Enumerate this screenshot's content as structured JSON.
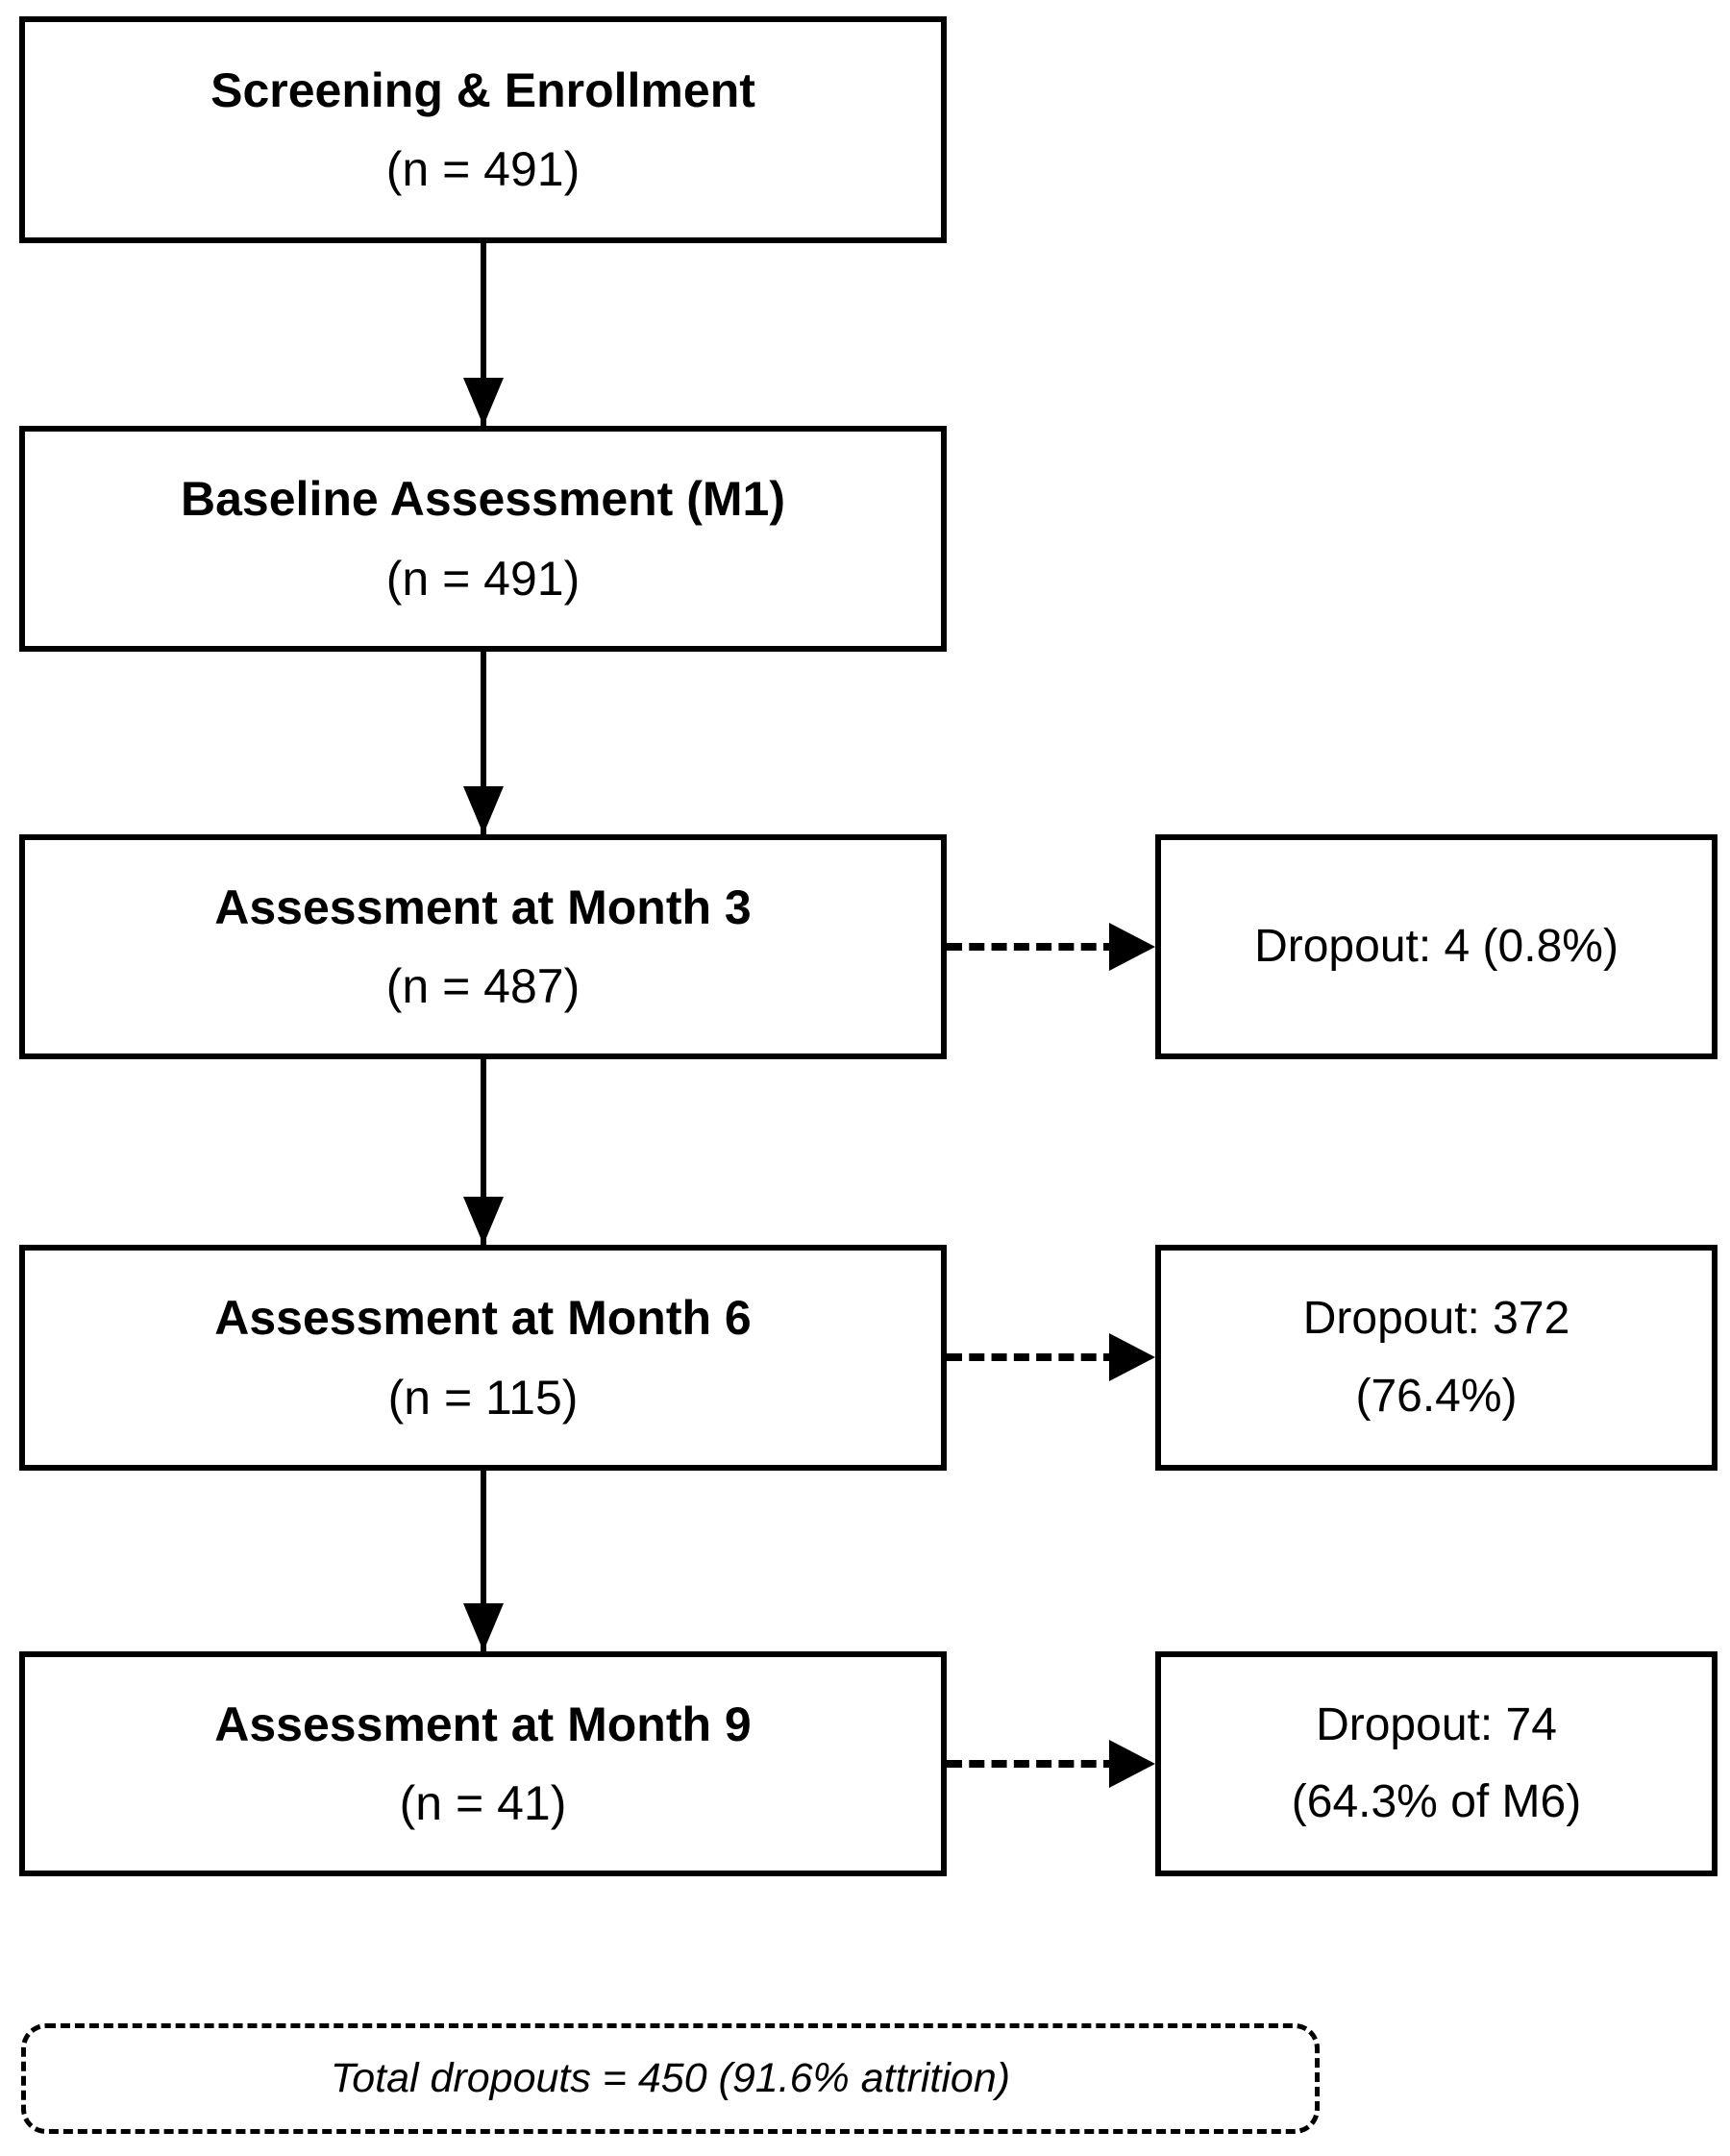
{
  "colors": {
    "ink": "#000000",
    "paper": "#ffffff"
  },
  "diagram": {
    "steps": [
      {
        "title": "Screening & Enrollment",
        "n": "(n = 491)"
      },
      {
        "title": "Baseline Assessment (M1)",
        "n": "(n = 491)"
      },
      {
        "title": "Assessment at Month 3",
        "n": "(n = 487)"
      },
      {
        "title": "Assessment at Month 6",
        "n": "(n = 115)"
      },
      {
        "title": "Assessment at Month 9",
        "n": "(n = 41)"
      }
    ],
    "dropouts": [
      {
        "lines": [
          "Dropout: 4 (0.8%)",
          ""
        ]
      },
      {
        "lines": [
          "Dropout: 372",
          "(76.4%)"
        ]
      },
      {
        "lines": [
          "Dropout: 74",
          "(64.3% of M6)"
        ]
      }
    ],
    "total": "Total dropouts = 450 (91.6% attrition)"
  }
}
